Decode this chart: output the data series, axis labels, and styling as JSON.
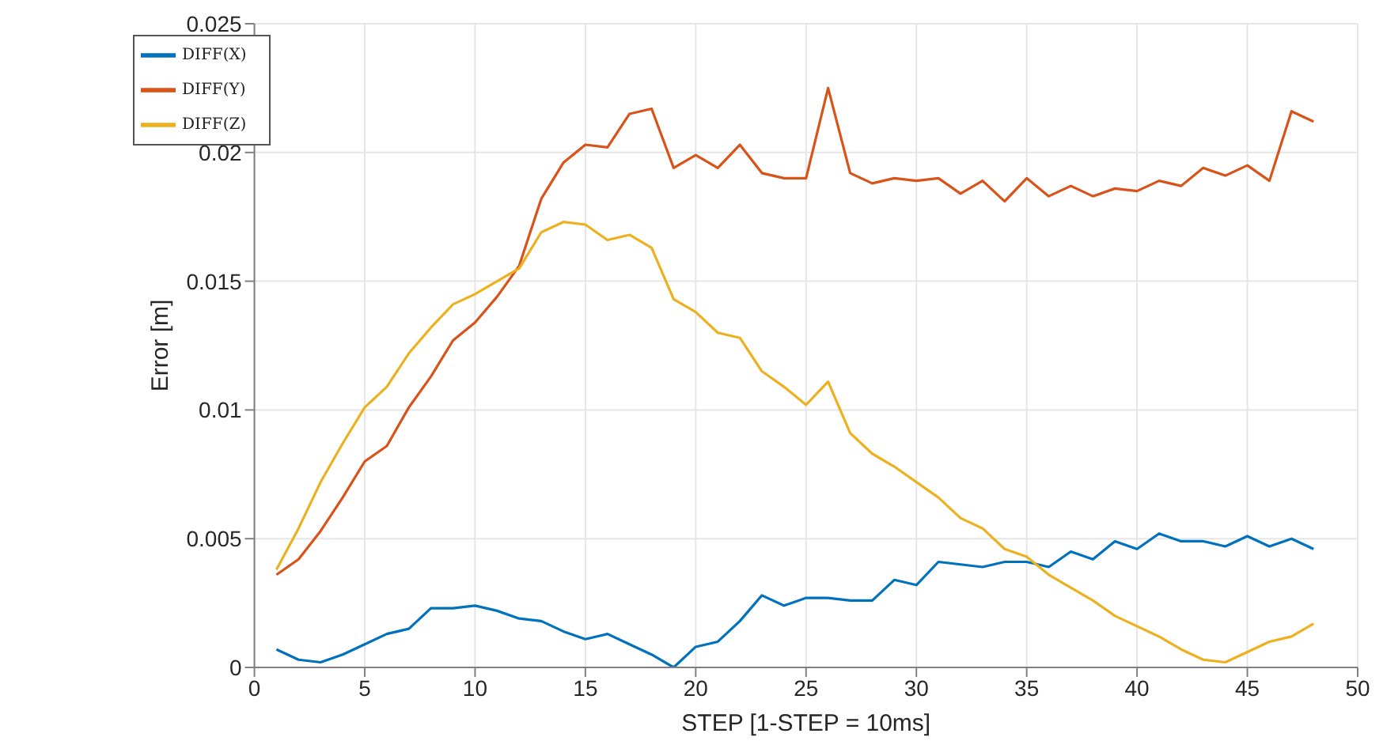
{
  "chart_data": {
    "type": "line",
    "xlabel": "STEP [1-STEP = 10ms]",
    "ylabel": "Error [m]",
    "x": [
      1,
      2,
      3,
      4,
      5,
      6,
      7,
      8,
      9,
      10,
      11,
      12,
      13,
      14,
      15,
      16,
      17,
      18,
      19,
      20,
      21,
      22,
      23,
      24,
      25,
      26,
      27,
      28,
      29,
      30,
      31,
      32,
      33,
      34,
      35,
      36,
      37,
      38,
      39,
      40,
      41,
      42,
      43,
      44,
      45,
      46,
      47,
      48
    ],
    "series": [
      {
        "name": "DIFF(X)",
        "color": "#0072bd",
        "values": [
          0.0007,
          0.0003,
          0.0002,
          0.0005,
          0.0009,
          0.0013,
          0.0015,
          0.0023,
          0.0023,
          0.0024,
          0.0022,
          0.0019,
          0.0018,
          0.0014,
          0.0011,
          0.0013,
          0.0009,
          0.0005,
          0.0,
          0.0008,
          0.001,
          0.0018,
          0.0028,
          0.0024,
          0.0027,
          0.0027,
          0.0026,
          0.0026,
          0.0034,
          0.0032,
          0.0041,
          0.004,
          0.0039,
          0.0041,
          0.0041,
          0.0039,
          0.0045,
          0.0042,
          0.0049,
          0.0046,
          0.0052,
          0.0049,
          0.0049,
          0.0047,
          0.0051,
          0.0047,
          0.005,
          0.0046
        ]
      },
      {
        "name": "DIFF(Y)",
        "color": "#d95319",
        "values": [
          0.0036,
          0.0042,
          0.0053,
          0.0066,
          0.008,
          0.0086,
          0.0101,
          0.0113,
          0.0127,
          0.0134,
          0.0144,
          0.0156,
          0.0182,
          0.0196,
          0.0203,
          0.0202,
          0.0215,
          0.0217,
          0.0194,
          0.0199,
          0.0194,
          0.0203,
          0.0192,
          0.019,
          0.019,
          0.0225,
          0.0192,
          0.0188,
          0.019,
          0.0189,
          0.019,
          0.0184,
          0.0189,
          0.0181,
          0.019,
          0.0183,
          0.0187,
          0.0183,
          0.0186,
          0.0185,
          0.0189,
          0.0187,
          0.0194,
          0.0191,
          0.0195,
          0.0189,
          0.0216,
          0.0212
        ]
      },
      {
        "name": "DIFF(Z)",
        "color": "#edb120",
        "values": [
          0.0038,
          0.0054,
          0.0072,
          0.0087,
          0.0101,
          0.0109,
          0.0122,
          0.0132,
          0.0141,
          0.0145,
          0.015,
          0.0155,
          0.0169,
          0.0173,
          0.0172,
          0.0166,
          0.0168,
          0.0163,
          0.0143,
          0.0138,
          0.013,
          0.0128,
          0.0115,
          0.0109,
          0.0102,
          0.0111,
          0.0091,
          0.0083,
          0.0078,
          0.0072,
          0.0066,
          0.0058,
          0.0054,
          0.0046,
          0.0043,
          0.0036,
          0.0031,
          0.0026,
          0.002,
          0.0016,
          0.0012,
          0.0007,
          0.0003,
          0.0002,
          0.0006,
          0.001,
          0.0012,
          0.0017
        ]
      }
    ],
    "xlim": [
      0,
      50
    ],
    "xticks": [
      0,
      5,
      10,
      15,
      20,
      25,
      30,
      35,
      40,
      45,
      50
    ],
    "ylim": [
      0,
      0.025
    ],
    "yticks": [
      0,
      0.005,
      0.01,
      0.015,
      0.02,
      0.025
    ],
    "grid": true,
    "legend": "top left",
    "marker": "none",
    "line_style": "solid"
  }
}
